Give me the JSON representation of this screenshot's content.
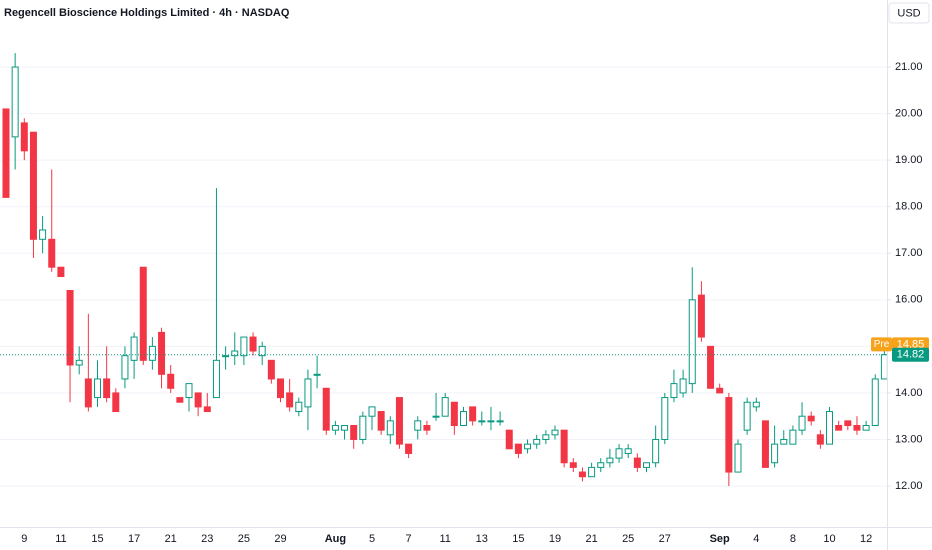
{
  "chart_data": {
    "type": "candlestick",
    "title": "Regencell Bioscience Holdings Limited · 4h · NASDAQ",
    "currency": "USD",
    "categories": [
      null,
      null,
      "9",
      null,
      null,
      null,
      "11",
      null,
      null,
      null,
      "15",
      null,
      null,
      null,
      "17",
      null,
      null,
      null,
      "21",
      null,
      null,
      null,
      "23",
      null,
      null,
      null,
      "25",
      null,
      null,
      null,
      "29",
      null,
      null,
      null,
      null,
      null,
      "Aug",
      null,
      null,
      null,
      "5",
      null,
      null,
      null,
      "7",
      null,
      null,
      null,
      "11",
      null,
      null,
      null,
      "13",
      null,
      null,
      null,
      "15",
      null,
      null,
      null,
      "19",
      null,
      null,
      null,
      "21",
      null,
      null,
      null,
      "25",
      null,
      null,
      null,
      "27",
      null,
      null,
      null,
      null,
      null,
      "Sep",
      null,
      null,
      null,
      "4",
      null,
      null,
      null,
      "8",
      null,
      null,
      null,
      "10",
      null,
      null,
      null,
      "12",
      null,
      null
    ],
    "open": [
      20.1,
      19.5,
      19.8,
      19.6,
      17.3,
      17.3,
      16.7,
      16.2,
      14.6,
      14.3,
      13.9,
      14.3,
      14.0,
      14.3,
      14.7,
      16.7,
      14.7,
      15.3,
      14.4,
      13.9,
      13.9,
      14.0,
      13.7,
      13.9,
      14.8,
      14.8,
      14.8,
      15.2,
      14.8,
      14.7,
      14.3,
      14.0,
      13.6,
      13.7,
      14.4,
      14.1,
      13.2,
      13.2,
      13.3,
      13.0,
      13.5,
      13.6,
      13.1,
      13.9,
      12.9,
      13.2,
      13.3,
      13.5,
      13.5,
      13.8,
      13.3,
      13.7,
      13.4,
      13.4,
      13.4,
      13.2,
      12.9,
      12.8,
      12.9,
      13.0,
      13.1,
      13.2,
      12.5,
      12.3,
      12.2,
      12.4,
      12.5,
      12.6,
      12.7,
      12.6,
      12.4,
      12.5,
      13.0,
      13.9,
      14.0,
      14.2,
      16.1,
      15.0,
      14.1,
      13.9,
      12.3,
      13.2,
      13.7,
      13.4,
      12.5,
      12.9,
      12.9,
      13.2,
      13.5,
      13.1,
      12.9,
      13.3,
      13.4,
      13.3,
      13.2,
      13.3,
      14.3
    ],
    "high": [
      20.1,
      21.3,
      19.9,
      19.6,
      17.8,
      18.8,
      16.7,
      16.2,
      15.0,
      15.7,
      14.7,
      15.0,
      14.1,
      15.0,
      15.3,
      16.7,
      15.2,
      15.4,
      14.6,
      13.9,
      14.2,
      14.0,
      14.0,
      18.4,
      15.0,
      15.3,
      15.2,
      15.3,
      15.1,
      14.7,
      14.3,
      14.3,
      13.9,
      14.5,
      14.8,
      14.1,
      13.4,
      13.3,
      13.3,
      13.6,
      13.7,
      13.6,
      13.5,
      13.9,
      12.9,
      13.5,
      13.4,
      14.0,
      14.0,
      13.8,
      13.7,
      13.7,
      13.6,
      13.7,
      13.6,
      13.2,
      12.9,
      13.0,
      13.1,
      13.2,
      13.3,
      13.2,
      12.6,
      12.4,
      12.5,
      12.6,
      12.8,
      12.9,
      12.9,
      12.7,
      12.5,
      13.3,
      14.0,
      14.5,
      14.5,
      16.7,
      16.4,
      15.0,
      14.2,
      14.0,
      13.0,
      13.9,
      13.9,
      13.4,
      13.3,
      13.2,
      13.3,
      13.8,
      13.6,
      13.2,
      13.7,
      13.4,
      13.4,
      13.5,
      13.4,
      14.4,
      14.9
    ],
    "low": [
      18.2,
      18.8,
      19.0,
      16.9,
      17.0,
      16.6,
      16.5,
      13.8,
      14.4,
      13.6,
      13.7,
      13.8,
      13.6,
      14.1,
      14.3,
      14.6,
      14.5,
      14.1,
      14.0,
      13.8,
      13.6,
      13.5,
      13.6,
      13.9,
      14.5,
      14.6,
      14.6,
      14.8,
      14.6,
      14.2,
      13.8,
      13.6,
      13.5,
      13.2,
      14.1,
      13.1,
      13.1,
      13.0,
      12.8,
      12.9,
      13.2,
      13.1,
      12.9,
      12.8,
      12.6,
      13.0,
      13.1,
      13.4,
      13.5,
      13.1,
      13.3,
      13.3,
      13.3,
      13.2,
      13.3,
      12.8,
      12.6,
      12.7,
      12.8,
      12.9,
      13.0,
      12.4,
      12.3,
      12.1,
      12.2,
      12.3,
      12.4,
      12.5,
      12.6,
      12.3,
      12.3,
      12.4,
      12.9,
      13.8,
      13.9,
      14.0,
      15.1,
      14.1,
      14.0,
      12.0,
      12.3,
      13.1,
      13.6,
      12.4,
      12.4,
      12.9,
      12.9,
      13.1,
      13.3,
      12.8,
      12.9,
      13.2,
      13.2,
      13.1,
      13.2,
      13.3,
      14.3
    ],
    "close": [
      18.2,
      21.0,
      19.2,
      17.3,
      17.5,
      16.7,
      16.5,
      14.6,
      14.7,
      13.7,
      14.3,
      13.9,
      13.6,
      14.8,
      15.2,
      14.7,
      15.0,
      14.4,
      14.1,
      13.8,
      14.2,
      13.7,
      13.6,
      14.7,
      14.8,
      14.9,
      15.2,
      14.9,
      15.0,
      14.3,
      13.9,
      13.7,
      13.8,
      14.3,
      14.4,
      13.2,
      13.3,
      13.3,
      13.0,
      13.5,
      13.7,
      13.2,
      13.4,
      12.9,
      12.7,
      13.4,
      13.2,
      13.5,
      13.9,
      13.3,
      13.6,
      13.4,
      13.4,
      13.4,
      13.4,
      12.8,
      12.7,
      12.9,
      13.0,
      13.1,
      13.2,
      12.5,
      12.4,
      12.2,
      12.4,
      12.5,
      12.6,
      12.8,
      12.8,
      12.4,
      12.5,
      13.0,
      13.9,
      14.2,
      14.3,
      16.0,
      15.2,
      14.1,
      14.0,
      12.3,
      12.9,
      13.8,
      13.8,
      12.4,
      12.9,
      13.0,
      13.2,
      13.5,
      13.4,
      12.9,
      13.6,
      13.2,
      13.3,
      13.2,
      13.3,
      14.3,
      14.82
    ],
    "up_color": "#089981",
    "down_color": "#f23645",
    "ylim": [
      11.12,
      22.44
    ],
    "yticks": [
      {
        "value": 12,
        "label": "12.00"
      },
      {
        "value": 13,
        "label": "13.00"
      },
      {
        "value": 14,
        "label": "14.00"
      },
      {
        "value": 15,
        "label": "15.00"
      },
      {
        "value": 16,
        "label": "16.00"
      },
      {
        "value": 17,
        "label": "17.00"
      },
      {
        "value": 18,
        "label": "18.00"
      },
      {
        "value": 19,
        "label": "19.00"
      },
      {
        "value": 20,
        "label": "20.00"
      },
      {
        "value": 21,
        "label": "21.00"
      }
    ],
    "grid": true,
    "last_price": 14.82,
    "premarket": {
      "label": "Pre",
      "value": 14.85,
      "color": "#f7a21b"
    }
  }
}
